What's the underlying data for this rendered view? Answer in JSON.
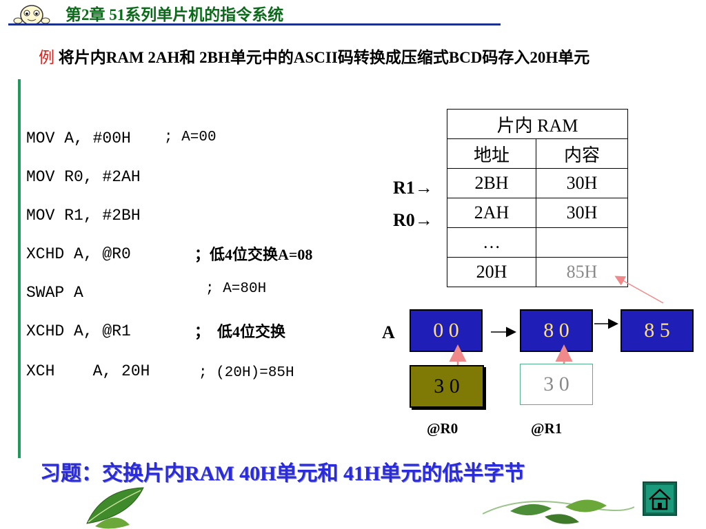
{
  "header": {
    "title": "第2章  51系列单片机的指令系统"
  },
  "task": {
    "prefix": "例",
    "text": "将片内RAM 2AH和 2BH单元中的ASCII码转换成压缩式BCD码存入20H单元"
  },
  "code": [
    {
      "instr": "MOV A, #00H",
      "comment": "; A=00",
      "style": "mono"
    },
    {
      "instr": "MOV R0, #2AH",
      "comment": "",
      "style": "mono"
    },
    {
      "instr": "MOV R1, #2BH",
      "comment": "",
      "style": "mono"
    },
    {
      "instr": "XCHD A, @R0",
      "comment": "；低4位交换A=08",
      "style": "bold"
    },
    {
      "instr": "SWAP A",
      "comment": "; A=80H",
      "style": "mono"
    },
    {
      "instr": "XCHD A, @R1",
      "comment": "；  低4位交换",
      "style": "bold"
    },
    {
      "instr": "XCH    A, 20H",
      "comment": "; (20H)=85H",
      "style": "mono"
    }
  ],
  "ram_table": {
    "title": "片内 RAM",
    "col_address": "地址",
    "col_content": "内容",
    "rows": [
      {
        "addr": "2BH",
        "content": "30H",
        "pointer": "R1→"
      },
      {
        "addr": "2AH",
        "content": "30H",
        "pointer": "R0→"
      },
      {
        "addr": "…",
        "content": "",
        "pointer": ""
      },
      {
        "addr": "20H",
        "content": "85H",
        "pointer": ""
      }
    ]
  },
  "register_diagram": {
    "label": "A",
    "a_values": [
      "0 0",
      "8 0",
      "8 5"
    ],
    "source_values": [
      "3 0",
      "3 0"
    ],
    "source_labels": [
      "@R0",
      "@R1"
    ]
  },
  "exercise": "习题：交换片内RAM 40H单元和 41H单元的低半字节",
  "colors": {
    "title_green": "#0b6a1a",
    "rule_blue": "#1b2f8f",
    "box_blue": "#1f1fb8",
    "box_olive": "#7f7a05",
    "exercise_blue": "#2a2bd9",
    "arrow_pink": "#f08a8a"
  }
}
